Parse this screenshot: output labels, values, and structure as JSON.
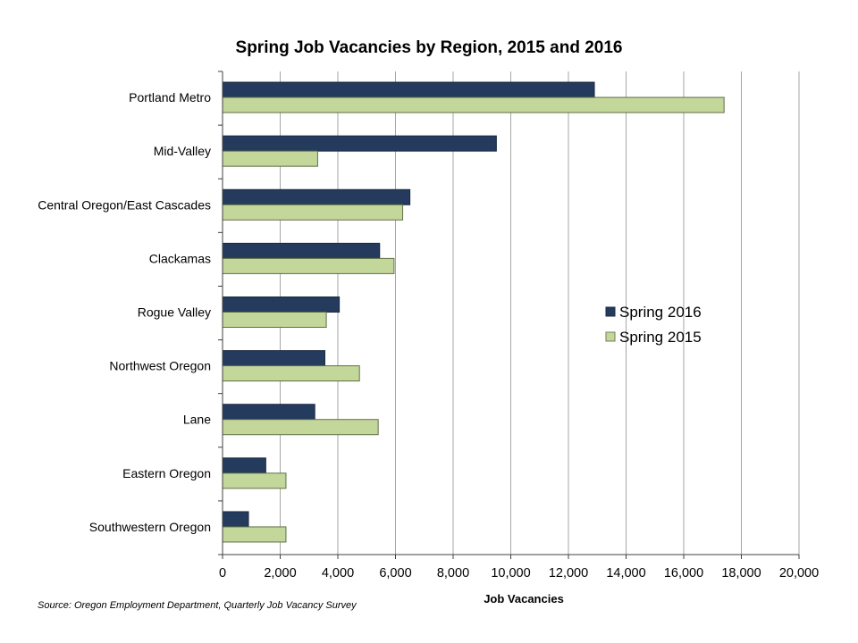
{
  "chart_data": {
    "type": "bar",
    "orientation": "horizontal",
    "title": "Spring Job Vacancies by Region, 2015 and 2016",
    "xlabel": "Job Vacancies",
    "ylabel": "",
    "xlim": [
      0,
      20000
    ],
    "xticks": [
      "0",
      "2,000",
      "4,000",
      "6,000",
      "8,000",
      "10,000",
      "12,000",
      "14,000",
      "16,000",
      "18,000",
      "20,000"
    ],
    "categories": [
      "Portland Metro",
      "Mid-Valley",
      "Central Oregon/East Cascades",
      "Clackamas",
      "Rogue Valley",
      "Northwest Oregon",
      "Lane",
      "Eastern Oregon",
      "Southwestern Oregon"
    ],
    "series": [
      {
        "name": "Spring 2016",
        "color": "#243b5e",
        "values": [
          12900,
          9500,
          6500,
          5450,
          4050,
          3550,
          3200,
          1500,
          900
        ]
      },
      {
        "name": "Spring 2015",
        "color": "#c4d79b",
        "values": [
          17400,
          3300,
          6250,
          5950,
          3600,
          4750,
          5400,
          2200,
          2200
        ]
      }
    ],
    "grid": true,
    "legend_position": "right",
    "source": "Source: Oregon Employment Department, Quarterly Job Vacancy Survey"
  }
}
